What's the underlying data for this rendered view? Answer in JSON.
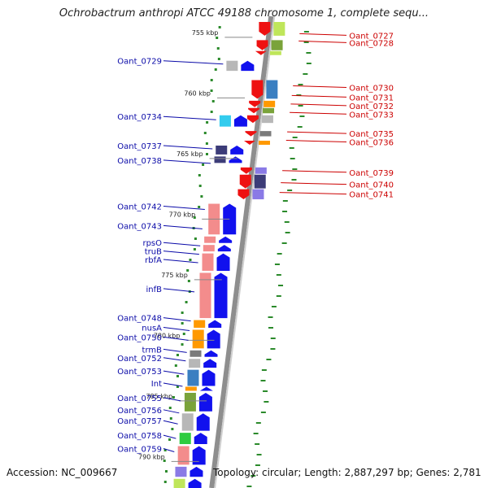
{
  "header": {
    "title": "Ochrobactrum anthropi ATCC 49188 chromosome 1, complete sequ..."
  },
  "footer": {
    "accession": "Accession: NC_009667",
    "summary": "Topology: circular; Length: 2,887,297 bp; Genes: 2,781"
  },
  "scale": {
    "ticks": [
      {
        "label": "755 kbp",
        "kbp": 755
      },
      {
        "label": "760 kbp",
        "kbp": 760
      },
      {
        "label": "765 kbp",
        "kbp": 765
      },
      {
        "label": "770 kbp",
        "kbp": 770
      },
      {
        "label": "775 kbp",
        "kbp": 775
      },
      {
        "label": "780 kbp",
        "kbp": 780
      },
      {
        "label": "785 kbp",
        "kbp": 785
      },
      {
        "label": "790 kbp",
        "kbp": 790
      }
    ]
  },
  "genes_reverse": [
    {
      "label": "Oant_0729",
      "kbp": 757.0
    },
    {
      "label": "Oant_0734",
      "kbp": 761.6
    },
    {
      "label": "Oant_0737",
      "kbp": 764.0
    },
    {
      "label": "Oant_0738",
      "kbp": 765.2
    },
    {
      "label": "Oant_0742",
      "kbp": 769.0
    },
    {
      "label": "Oant_0743",
      "kbp": 770.6
    },
    {
      "label": "rpsO",
      "kbp": 772.0
    },
    {
      "label": "truB",
      "kbp": 772.7
    },
    {
      "label": "rbfA",
      "kbp": 773.4
    },
    {
      "label": "infB",
      "kbp": 775.8
    },
    {
      "label": "Oant_0748",
      "kbp": 778.2
    },
    {
      "label": "nusA",
      "kbp": 779.0
    },
    {
      "label": "Oant_0750",
      "kbp": 779.8
    },
    {
      "label": "trmB",
      "kbp": 780.8
    },
    {
      "label": "Oant_0752",
      "kbp": 781.5
    },
    {
      "label": "Oant_0753",
      "kbp": 782.6
    },
    {
      "label": "Int",
      "kbp": 783.6
    },
    {
      "label": "Oant_0755",
      "kbp": 784.8
    },
    {
      "label": "Oant_0756",
      "kbp": 785.8
    },
    {
      "label": "Oant_0757",
      "kbp": 786.7
    },
    {
      "label": "Oant_0758",
      "kbp": 787.9
    },
    {
      "label": "Oant_0759",
      "kbp": 789.0
    }
  ],
  "genes_forward": [
    {
      "label": "Oant_0727",
      "kbp": 754.9
    },
    {
      "label": "Oant_0728",
      "kbp": 755.5
    },
    {
      "label": "Oant_0730",
      "kbp": 759.2
    },
    {
      "label": "Oant_0731",
      "kbp": 760.0
    },
    {
      "label": "Oant_0732",
      "kbp": 760.7
    },
    {
      "label": "Oant_0733",
      "kbp": 761.4
    },
    {
      "label": "Oant_0735",
      "kbp": 763.0
    },
    {
      "label": "Oant_0736",
      "kbp": 763.7
    },
    {
      "label": "Oant_0739",
      "kbp": 766.2
    },
    {
      "label": "Oant_0740",
      "kbp": 767.2
    },
    {
      "label": "Oant_0741",
      "kbp": 768.0
    }
  ],
  "colors": {
    "forward_cds": "#ee1111",
    "reverse_cds": "#1111ee",
    "reverse_label": "#0a0aa8",
    "forward_label": "#cc0000",
    "backbone": "#8e8e8e",
    "gc_dots": "#2b8a2b"
  },
  "cog_colors": [
    "#f38c8c",
    "#ff9900",
    "#7a7a7a",
    "#b7b7b7",
    "#7aa33a",
    "#bfe65a",
    "#2ecc40",
    "#3c3c78",
    "#8a7ae6",
    "#33ccee",
    "#3a7fc1"
  ]
}
